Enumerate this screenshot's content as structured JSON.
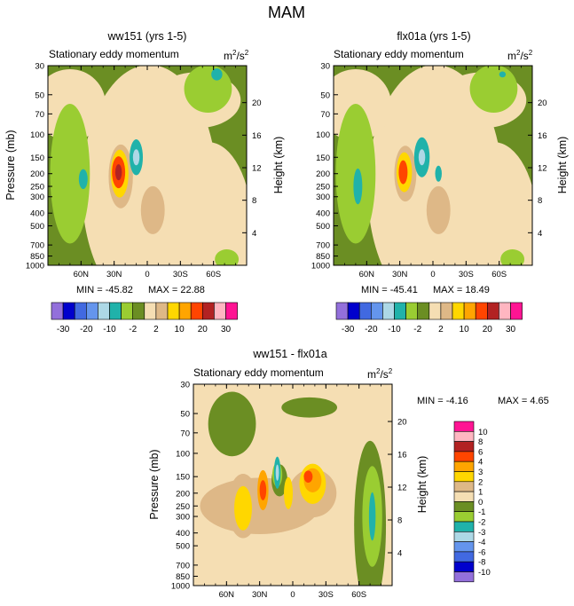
{
  "figure": {
    "title": "MAM"
  },
  "colors": {
    "main_scale": [
      "#9370db",
      "#0000cd",
      "#4169e1",
      "#6495ed",
      "#add8e6",
      "#20b2aa",
      "#9acd32",
      "#6b8e23",
      "#f5deb3",
      "#deb887",
      "#ffd700",
      "#ffa500",
      "#ff4500",
      "#b22222",
      "#ffb6c1",
      "#ff1493"
    ],
    "diff_scale": [
      "#9370db",
      "#0000cd",
      "#4169e1",
      "#6495ed",
      "#add8e6",
      "#20b2aa",
      "#9acd32",
      "#6b8e23",
      "#f5deb3",
      "#deb887",
      "#ffd700",
      "#ffa500",
      "#ff4500",
      "#b22222",
      "#ffb6c1",
      "#ff1493"
    ]
  },
  "chart_data": [
    {
      "id": "panel1",
      "type": "heatmap",
      "title": "ww151 (yrs 1-5)",
      "subtitle": "Stationary eddy momentum",
      "units_base": "m",
      "units_sup1": "2",
      "units_mid": "/s",
      "units_sup2": "2",
      "ylabel": "Pressure (mb)",
      "ylabel_right": "Height (km)",
      "yticks": [
        "30",
        "50",
        "70",
        "100",
        "150",
        "200",
        "250",
        "300",
        "400",
        "500",
        "700",
        "850",
        "1000"
      ],
      "ytick_values": [
        30,
        50,
        70,
        100,
        150,
        200,
        250,
        300,
        400,
        500,
        700,
        850,
        1000
      ],
      "right_ticks": [
        "4",
        "8",
        "12",
        "16",
        "20"
      ],
      "right_tick_values": [
        4,
        8,
        12,
        16,
        20
      ],
      "xticks": [
        "60N",
        "30N",
        "0",
        "30S",
        "60S"
      ],
      "xtick_values": [
        60,
        30,
        0,
        -30,
        -60
      ],
      "xlim": [
        90,
        -90
      ],
      "ylim": [
        1000,
        30
      ],
      "min_label": "MIN = -45.82",
      "max_label": "MAX =  22.88",
      "blobs": [
        {
          "lat": 22,
          "p": 200,
          "w": 14,
          "h": 2.2,
          "level": 8
        },
        {
          "lat": 24,
          "p": 210,
          "w": 11,
          "h": 1.6,
          "level": 9
        },
        {
          "lat": 25,
          "p": 200,
          "w": 8,
          "h": 1.2,
          "level": 10
        },
        {
          "lat": 26,
          "p": 195,
          "w": 6,
          "h": 0.8,
          "level": 12
        },
        {
          "lat": 26,
          "p": 195,
          "w": 3,
          "h": 0.4,
          "level": 13
        },
        {
          "lat": 10,
          "p": 150,
          "w": 6,
          "h": 0.9,
          "level": 5
        },
        {
          "lat": 10,
          "p": 150,
          "w": 3,
          "h": 0.4,
          "level": 4
        },
        {
          "lat": 58,
          "p": 220,
          "w": 4,
          "h": 0.5,
          "level": 5
        },
        {
          "lat": -63,
          "p": 35,
          "w": 5,
          "h": 0.3,
          "level": 5
        }
      ],
      "colorbar_labels": [
        "-30",
        "-20",
        "-10",
        "-2",
        "2",
        "10",
        "20",
        "30"
      ]
    },
    {
      "id": "panel2",
      "type": "heatmap",
      "title": "flx01a (yrs 1-5)",
      "subtitle": "Stationary eddy momentum",
      "units_base": "m",
      "units_sup1": "2",
      "units_mid": "/s",
      "units_sup2": "2",
      "ylabel": "Pressure (mb)",
      "ylabel_right": "Height (km)",
      "yticks": [
        "30",
        "50",
        "70",
        "100",
        "150",
        "200",
        "250",
        "300",
        "400",
        "500",
        "700",
        "850",
        "1000"
      ],
      "ytick_values": [
        30,
        50,
        70,
        100,
        150,
        200,
        250,
        300,
        400,
        500,
        700,
        850,
        1000
      ],
      "right_ticks": [
        "4",
        "8",
        "12",
        "16",
        "20"
      ],
      "right_tick_values": [
        4,
        8,
        12,
        16,
        20
      ],
      "xticks": [
        "60N",
        "30N",
        "0",
        "30S",
        "60S"
      ],
      "xtick_values": [
        60,
        30,
        0,
        -30,
        -60
      ],
      "xlim": [
        90,
        -90
      ],
      "ylim": [
        1000,
        30
      ],
      "min_label": "MIN = -45.41",
      "max_label": "MAX =  18.49",
      "blobs": [
        {
          "lat": 22,
          "p": 200,
          "w": 13,
          "h": 2.0,
          "level": 8
        },
        {
          "lat": 25,
          "p": 200,
          "w": 10,
          "h": 1.4,
          "level": 9
        },
        {
          "lat": 26,
          "p": 195,
          "w": 7,
          "h": 1.0,
          "level": 10
        },
        {
          "lat": 27,
          "p": 195,
          "w": 4,
          "h": 0.6,
          "level": 12
        },
        {
          "lat": 10,
          "p": 150,
          "w": 7,
          "h": 1.0,
          "level": 5
        },
        {
          "lat": 10,
          "p": 150,
          "w": 3,
          "h": 0.4,
          "level": 4
        },
        {
          "lat": 68,
          "p": 250,
          "w": 4,
          "h": 0.9,
          "level": 5
        },
        {
          "lat": -5,
          "p": 200,
          "w": 3,
          "h": 0.4,
          "level": 5
        },
        {
          "lat": -63,
          "p": 35,
          "w": 3,
          "h": 0.15,
          "level": 5
        }
      ],
      "colorbar_labels": [
        "-30",
        "-20",
        "-10",
        "-2",
        "2",
        "10",
        "20",
        "30"
      ]
    },
    {
      "id": "panel3",
      "type": "heatmap",
      "title": "ww151 - flx01a",
      "subtitle": "Stationary eddy momentum",
      "units_base": "m",
      "units_sup1": "2",
      "units_mid": "/s",
      "units_sup2": "2",
      "ylabel": "Pressure (mb)",
      "ylabel_right": "Height (km)",
      "yticks": [
        "30",
        "50",
        "70",
        "100",
        "150",
        "200",
        "250",
        "300",
        "400",
        "500",
        "700",
        "850",
        "1000"
      ],
      "ytick_values": [
        30,
        50,
        70,
        100,
        150,
        200,
        250,
        300,
        400,
        500,
        700,
        850,
        1000
      ],
      "right_ticks": [
        "4",
        "8",
        "12",
        "16",
        "20"
      ],
      "right_tick_values": [
        4,
        8,
        12,
        16,
        20
      ],
      "xticks": [
        "60N",
        "30N",
        "0",
        "30S",
        "60S"
      ],
      "xtick_values": [
        60,
        30,
        0,
        -30,
        -60
      ],
      "xlim": [
        90,
        -90
      ],
      "ylim": [
        1000,
        30
      ],
      "min_label": "MIN =  -4.16",
      "max_label": "MAX =   4.65",
      "blobs": [
        {
          "lat": 45,
          "p": 250,
          "w": 14,
          "h": 1.6,
          "level": 9
        },
        {
          "lat": 45,
          "p": 260,
          "w": 8,
          "h": 1.1,
          "level": 10
        },
        {
          "lat": 27,
          "p": 190,
          "w": 5,
          "h": 1.0,
          "level": 11
        },
        {
          "lat": 27,
          "p": 190,
          "w": 3,
          "h": 0.5,
          "level": 12
        },
        {
          "lat": 14,
          "p": 140,
          "w": 3,
          "h": 0.8,
          "level": 5
        },
        {
          "lat": 14,
          "p": 140,
          "w": 1.5,
          "h": 0.4,
          "level": 4
        },
        {
          "lat": 4,
          "p": 200,
          "w": 4,
          "h": 0.8,
          "level": 10
        },
        {
          "lat": -18,
          "p": 170,
          "w": 12,
          "h": 1.0,
          "level": 10
        },
        {
          "lat": -18,
          "p": 160,
          "w": 8,
          "h": 0.6,
          "level": 11
        },
        {
          "lat": -14,
          "p": 150,
          "w": 4,
          "h": 0.3,
          "level": 12
        },
        {
          "lat": -72,
          "p": 300,
          "w": 3,
          "h": 1.2,
          "level": 5
        }
      ],
      "colorbar_labels": [
        "10",
        "8",
        "6",
        "4",
        "3",
        "2",
        "1",
        "0",
        "-1",
        "-2",
        "-3",
        "-4",
        "-6",
        "-8",
        "-10"
      ]
    }
  ]
}
